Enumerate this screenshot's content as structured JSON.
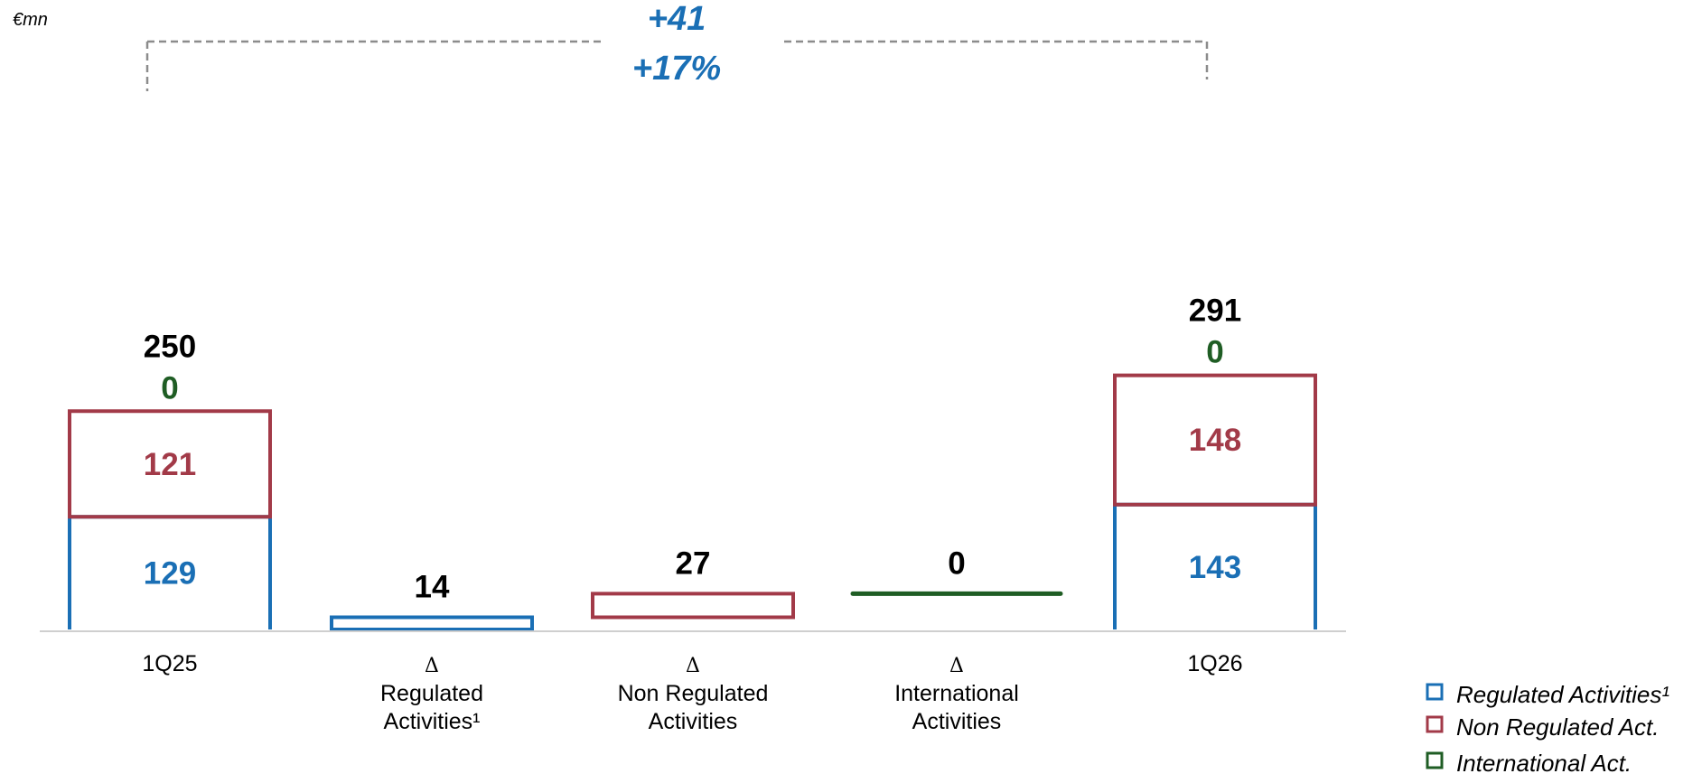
{
  "chart_data": {
    "type": "bar",
    "subtype": "waterfall-stacked",
    "unit": "€mn",
    "categories": [
      {
        "lines": [
          "1Q25"
        ],
        "delta": false
      },
      {
        "lines": [
          "Regulated",
          "Activities¹"
        ],
        "delta": true
      },
      {
        "lines": [
          "Non Regulated",
          "Activities"
        ],
        "delta": true
      },
      {
        "lines": [
          "International",
          "Activities"
        ],
        "delta": true
      },
      {
        "lines": [
          "1Q26"
        ],
        "delta": false
      }
    ],
    "delta_symbol": "Δ",
    "series": [
      {
        "name": "Regulated Activities¹",
        "color": "#1a6fb5",
        "values": [
          129,
          14,
          0,
          0,
          143
        ]
      },
      {
        "name": "Non Regulated Act.",
        "color": "#a23a48",
        "values": [
          121,
          0,
          27,
          0,
          148
        ]
      },
      {
        "name": "International Act.",
        "color": "#1f5d24",
        "values": [
          0,
          0,
          0,
          0,
          0
        ]
      }
    ],
    "totals": [
      "250",
      "14",
      "27",
      "0",
      "291"
    ],
    "segment_labels": [
      {
        "cat": 0,
        "series": 0,
        "text": "129"
      },
      {
        "cat": 0,
        "series": 1,
        "text": "121"
      },
      {
        "cat": 0,
        "series": 2,
        "text": "0"
      },
      {
        "cat": 4,
        "series": 0,
        "text": "143"
      },
      {
        "cat": 4,
        "series": 1,
        "text": "148"
      },
      {
        "cat": 4,
        "series": 2,
        "text": "0"
      }
    ],
    "bracket": {
      "change_abs": "+41",
      "change_pct": "+17%",
      "color": "#1a6fb5"
    },
    "ylim": [
      0,
      291
    ],
    "legend_position": "bottom-right"
  }
}
